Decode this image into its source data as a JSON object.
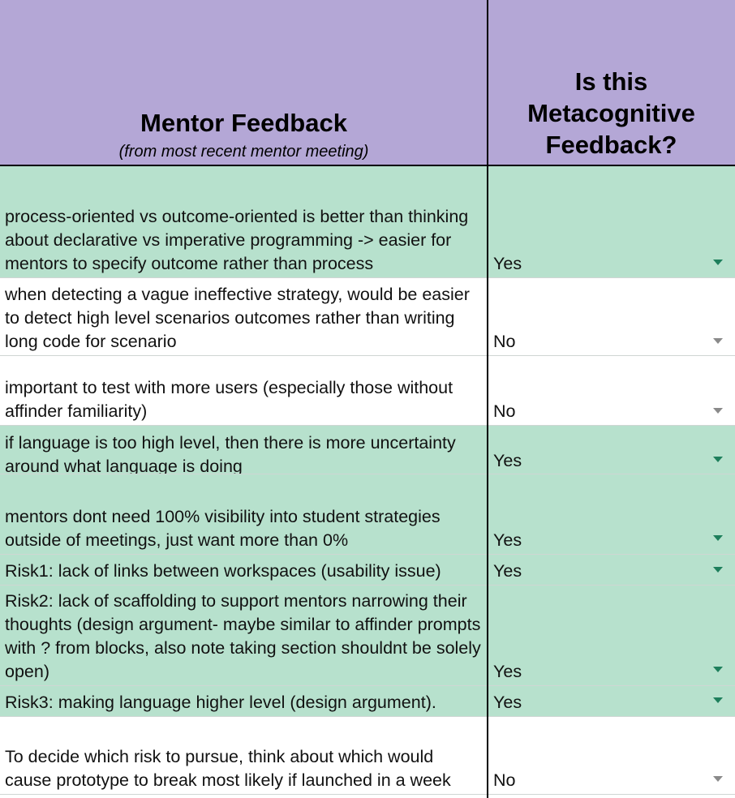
{
  "header": {
    "col_feedback_title": "Mentor Feedback",
    "col_feedback_subtitle": "(from most  recent mentor meeting)",
    "col_meta_line1": "Is this",
    "col_meta_line2": "Metacognitive",
    "col_meta_line3": "Feedback?"
  },
  "colors": {
    "header_bg": "#b4a7d6",
    "yes_row_bg": "#b7e1cd",
    "no_row_bg": "#ffffff",
    "grid_line": "#000000"
  },
  "rows": [
    {
      "feedback": "process-oriented vs outcome-oriented is better than thinking about declarative vs imperative programming -> easier for mentors to specify outcome rather than process",
      "metacognitive": "Yes"
    },
    {
      "feedback": "when detecting a vague ineffective strategy, would be easier to detect high level scenarios outcomes rather than writing long code for scenario",
      "metacognitive": "No"
    },
    {
      "feedback": "important to test with more users (especially those without affinder familiarity)",
      "metacognitive": "No"
    },
    {
      "feedback": "if language is too high level, then there is more uncertainty around what language is doing",
      "metacognitive": "Yes"
    },
    {
      "feedback": "mentors dont need 100% visibility into student strategies outside of meetings, just want more than 0%",
      "metacognitive": "Yes"
    },
    {
      "feedback": "Risk1: lack of links between workspaces (usability issue)",
      "metacognitive": "Yes"
    },
    {
      "feedback": "Risk2: lack of scaffolding to support mentors narrowing their thoughts (design argument- maybe similar to affinder prompts with ? from blocks, also note taking section shouldnt be solely open)",
      "metacognitive": "Yes"
    },
    {
      "feedback": "Risk3: making language higher level (design argument).",
      "metacognitive": "Yes"
    },
    {
      "feedback": "To decide which risk to pursue, think about which would cause prototype to break most likely if launched in a week",
      "metacognitive": "No"
    }
  ],
  "dropdown_icon": "chevron-down-icon"
}
